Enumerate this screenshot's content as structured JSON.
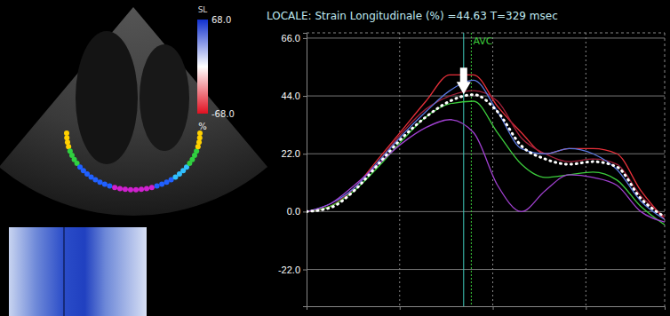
{
  "chart_data": {
    "type": "line",
    "title": "LOCALE: Strain Longitudinale (%) =44.63 T=329 msec",
    "x": [
      0,
      50,
      100,
      150,
      200,
      250,
      300,
      350,
      400,
      450,
      500,
      550,
      600,
      650,
      700,
      750
    ],
    "xlim": [
      0,
      750
    ],
    "xticks": [
      195,
      390,
      585
    ],
    "ylim": [
      -36,
      68
    ],
    "yticks": [
      {
        "value": -22,
        "label": "-22.0"
      },
      {
        "value": 0,
        "label": "0.0"
      },
      {
        "value": 22,
        "label": "22.0"
      },
      {
        "value": 44,
        "label": "44.0"
      },
      {
        "value": 66,
        "label": "66.0"
      }
    ],
    "tick_labels": "y",
    "grid": true,
    "series": [
      {
        "color": "#e8303a",
        "line_style": "solid",
        "values": [
          0,
          2,
          9,
          20,
          31,
          42,
          52,
          52,
          40,
          30,
          22,
          24,
          24,
          22,
          8,
          -3
        ]
      },
      {
        "color": "#a0203a",
        "line_style": "solid",
        "values": [
          0,
          2,
          9,
          19,
          30,
          39,
          44,
          46,
          42,
          28,
          22,
          19,
          20,
          18,
          6,
          -2
        ]
      },
      {
        "color": "#5a78e0",
        "line_style": "solid",
        "values": [
          0,
          3,
          9,
          19,
          29,
          38,
          46,
          50,
          38,
          24,
          22,
          24,
          22,
          16,
          4,
          -3
        ]
      },
      {
        "color": "#3ccc3c",
        "line_style": "solid",
        "values": [
          0,
          2,
          8,
          17,
          27,
          36,
          41,
          42,
          30,
          18,
          13,
          14,
          15,
          12,
          2,
          -5
        ]
      },
      {
        "color": "#a040d0",
        "line_style": "solid",
        "values": [
          0,
          3,
          10,
          18,
          26,
          32,
          35,
          30,
          10,
          0,
          8,
          14,
          13,
          10,
          0,
          -4
        ]
      },
      {
        "color": "#ffffff",
        "line_style": "dotted",
        "values": [
          0,
          1.5,
          8,
          18,
          28,
          36,
          42,
          44.5,
          38,
          25,
          20,
          18,
          19,
          17,
          5,
          -2
        ]
      }
    ],
    "cursor": {
      "x": 329,
      "y": 44.63
    },
    "annotations": [
      {
        "text": "AVC",
        "x": 345
      }
    ],
    "colorbar": {
      "title": "SL",
      "unit": "%",
      "range": [
        -68,
        68
      ],
      "ticks": [
        {
          "value": 68,
          "label": "68.0"
        },
        {
          "value": -68,
          "label": "-68.0"
        }
      ]
    }
  }
}
